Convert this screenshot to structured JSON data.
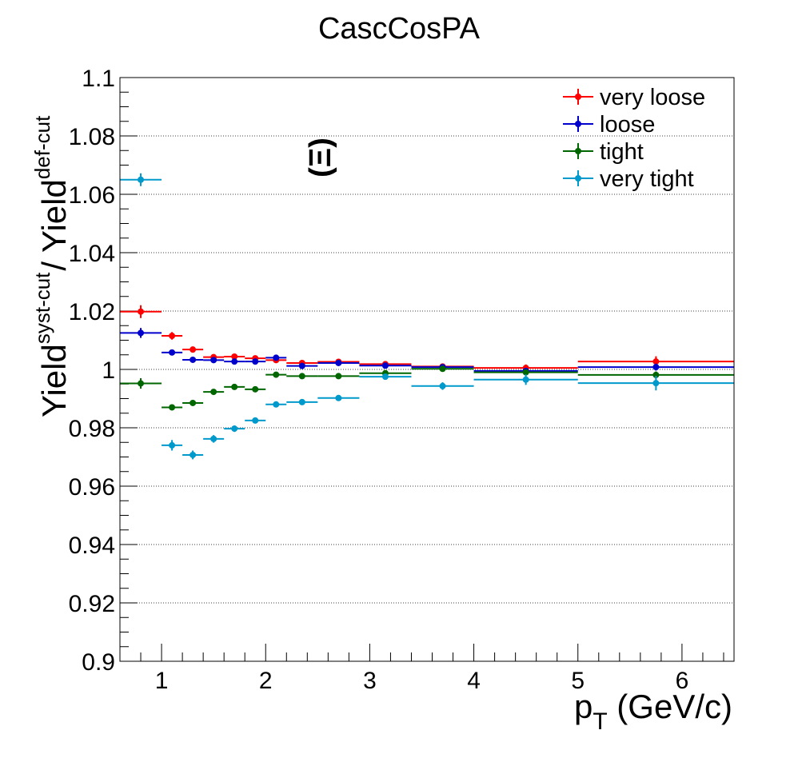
{
  "chart_data": {
    "type": "scatter",
    "title": "CascCosPA",
    "xlabel": {
      "main": "p",
      "sub": "T",
      "rest": " (GeV/c)"
    },
    "ylabel": {
      "part1": "Yield",
      "sup1": "syst-cut",
      "part2": "/ Yield",
      "sup2": "def-cut"
    },
    "annotation": "Ξ",
    "xlim": [
      0.6,
      6.5
    ],
    "ylim": [
      0.9,
      1.1
    ],
    "x_ticks": [
      1,
      2,
      3,
      4,
      5,
      6
    ],
    "x_tick_labels": [
      "1",
      "2",
      "3",
      "4",
      "5",
      "6"
    ],
    "y_ticks": [
      0.9,
      0.92,
      0.94,
      0.96,
      0.98,
      1.0,
      1.02,
      1.04,
      1.06,
      1.08,
      1.1
    ],
    "y_tick_labels": [
      "0.9",
      "0.92",
      "0.94",
      "0.96",
      "0.98",
      "1",
      "1.02",
      "1.04",
      "1.06",
      "1.08",
      "1.1"
    ],
    "y_grid": true,
    "legend_position": "top-right",
    "bins": [
      [
        0.6,
        1.0
      ],
      [
        1.0,
        1.2
      ],
      [
        1.2,
        1.4
      ],
      [
        1.4,
        1.6
      ],
      [
        1.6,
        1.8
      ],
      [
        1.8,
        2.0
      ],
      [
        2.0,
        2.2
      ],
      [
        2.2,
        2.5
      ],
      [
        2.5,
        2.9
      ],
      [
        2.9,
        3.4
      ],
      [
        3.4,
        4.0
      ],
      [
        4.0,
        5.0
      ],
      [
        5.0,
        6.5
      ]
    ],
    "series": [
      {
        "name": "very loose",
        "color": "#ff0000",
        "y": [
          1.0198,
          1.0115,
          1.0068,
          1.0042,
          1.0044,
          1.0038,
          1.0032,
          1.0022,
          1.0026,
          1.0018,
          1.001,
          1.0005,
          1.0027
        ],
        "yerr": [
          0.0022,
          0.0013,
          0.001,
          0.0008,
          0.0007,
          0.0007,
          0.0006,
          0.0006,
          0.0006,
          0.0006,
          0.0007,
          0.0012,
          0.0018
        ]
      },
      {
        "name": "loose",
        "color": "#0000cc",
        "y": [
          1.0125,
          1.0058,
          1.0033,
          1.0032,
          1.0027,
          1.0027,
          1.004,
          1.0012,
          1.0022,
          1.0013,
          1.0008,
          0.9995,
          1.0008
        ],
        "yerr": [
          0.0017,
          0.0008,
          0.0006,
          0.0006,
          0.0005,
          0.0005,
          0.0006,
          0.0005,
          0.0005,
          0.0005,
          0.0005,
          0.0008,
          0.0012
        ]
      },
      {
        "name": "tight",
        "color": "#006600",
        "y": [
          0.9952,
          0.987,
          0.9885,
          0.9923,
          0.994,
          0.9932,
          0.9982,
          0.9977,
          0.9977,
          0.9987,
          1.0002,
          0.999,
          0.9981
        ],
        "yerr": [
          0.0018,
          0.001,
          0.0008,
          0.0006,
          0.0005,
          0.0005,
          0.0005,
          0.0005,
          0.0005,
          0.0005,
          0.0005,
          0.0009,
          0.0012
        ]
      },
      {
        "name": "very tight",
        "color": "#0099cc",
        "y": [
          1.065,
          0.974,
          0.9707,
          0.9762,
          0.9797,
          0.9825,
          0.988,
          0.9888,
          0.9902,
          0.9975,
          0.9943,
          0.9965,
          0.9953
        ],
        "yerr": [
          0.0022,
          0.0018,
          0.0015,
          0.0013,
          0.0011,
          0.001,
          0.001,
          0.0008,
          0.0008,
          0.001,
          0.0013,
          0.0018,
          0.0025
        ]
      }
    ]
  }
}
